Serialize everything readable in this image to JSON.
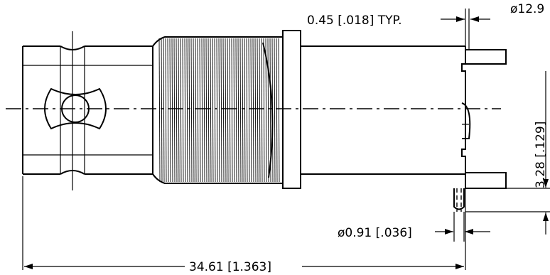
{
  "dimensions": {
    "top_callout": "0.45 [.018] TYP.",
    "corner_callout": "ø12.9",
    "side_callout": "3.28 [.129]",
    "pin_diameter": "ø0.91 [.036]",
    "overall_length": "34.61 [1.363]"
  },
  "colors": {
    "line": "#000000",
    "background": "#ffffff"
  }
}
